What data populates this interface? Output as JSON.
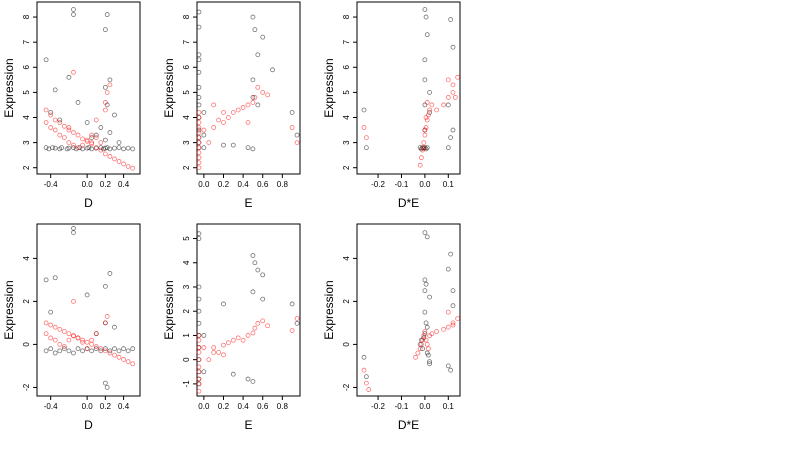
{
  "figure": {
    "axis_color": "#000000",
    "series_colors": {
      "group_1": "#000000",
      "group_2": "#ff0000"
    },
    "point_shape": "open-circle"
  },
  "chart_data": [
    {
      "type": "scatter",
      "row": 1,
      "col": 1,
      "xlabel": "D",
      "ylabel": "Expression",
      "xlim": [
        -0.55,
        0.58
      ],
      "ylim": [
        1.75,
        8.6
      ],
      "xticks": [
        -0.4,
        0.0,
        0.2,
        0.4
      ],
      "xtick_labels": [
        "-0.4",
        "0.0",
        "0.2",
        "0.4"
      ],
      "yticks": [
        2,
        3,
        4,
        5,
        6,
        7,
        8
      ],
      "ytick_labels": [
        "2",
        "3",
        "4",
        "5",
        "6",
        "7",
        "8"
      ],
      "series": [
        {
          "color": "#000000",
          "x": [
            -0.45,
            -0.42,
            -0.38,
            -0.35,
            -0.3,
            -0.28,
            -0.22,
            -0.2,
            -0.15,
            -0.12,
            -0.08,
            -0.05,
            0.0,
            0.02,
            0.05,
            0.1,
            0.15,
            0.18,
            0.2,
            0.22,
            0.25,
            0.3,
            0.35,
            0.4,
            0.45,
            0.5,
            -0.45,
            -0.35,
            -0.2,
            -0.1,
            0.0,
            0.05,
            0.2,
            0.22,
            0.25,
            0.3,
            -0.15,
            -0.15,
            0.2,
            0.22,
            -0.4,
            -0.3,
            0.1,
            0.15,
            0.2,
            0.25,
            0.35
          ],
          "y": [
            2.8,
            2.75,
            2.8,
            2.78,
            2.75,
            2.8,
            2.75,
            2.78,
            2.8,
            2.75,
            2.8,
            2.75,
            2.78,
            2.8,
            2.75,
            2.78,
            2.8,
            2.75,
            2.78,
            2.8,
            2.75,
            2.78,
            2.8,
            2.75,
            2.78,
            2.75,
            6.3,
            5.1,
            5.6,
            4.6,
            3.8,
            3.2,
            7.5,
            8.1,
            5.5,
            4.1,
            8.3,
            8.1,
            5.2,
            4.5,
            4.2,
            3.9,
            3.3,
            3.6,
            3.1,
            3.4,
            3.0
          ]
        },
        {
          "color": "#ff0000",
          "x": [
            -0.45,
            -0.4,
            -0.35,
            -0.3,
            -0.25,
            -0.2,
            -0.15,
            -0.1,
            -0.05,
            0.0,
            0.05,
            0.1,
            0.15,
            0.2,
            0.25,
            0.3,
            0.35,
            0.4,
            0.45,
            0.5,
            -0.45,
            -0.4,
            -0.35,
            -0.3,
            -0.25,
            -0.2,
            -0.15,
            -0.1,
            -0.05,
            0.0,
            0.05,
            0.1,
            0.15,
            0.2,
            0.22,
            0.25,
            0.2,
            -0.15,
            -0.2,
            0.05,
            0.1
          ],
          "y": [
            4.3,
            4.1,
            3.9,
            3.8,
            3.65,
            3.5,
            3.4,
            3.3,
            3.15,
            3.05,
            2.95,
            2.8,
            2.7,
            2.55,
            2.45,
            2.35,
            2.25,
            2.15,
            2.05,
            1.98,
            3.8,
            3.6,
            3.5,
            3.3,
            3.2,
            3.0,
            2.9,
            2.8,
            2.9,
            3.1,
            3.0,
            3.2,
            3.0,
            4.6,
            5.0,
            5.3,
            4.3,
            5.8,
            3.6,
            3.3,
            3.9
          ]
        }
      ]
    },
    {
      "type": "scatter",
      "row": 1,
      "col": 2,
      "xlabel": "E",
      "ylabel": "Expression",
      "xlim": [
        -0.07,
        0.98
      ],
      "ylim": [
        1.75,
        8.6
      ],
      "xticks": [
        0.0,
        0.2,
        0.4,
        0.6,
        0.8
      ],
      "xtick_labels": [
        "0.0",
        "0.2",
        "0.4",
        "0.6",
        "0.8"
      ],
      "yticks": [
        2,
        3,
        4,
        5,
        6,
        7,
        8
      ],
      "ytick_labels": [
        "2",
        "3",
        "4",
        "5",
        "6",
        "7",
        "8"
      ],
      "series": [
        {
          "color": "#000000",
          "x": [
            -0.05,
            -0.05,
            -0.05,
            -0.05,
            -0.05,
            -0.05,
            -0.05,
            -0.05,
            -0.05,
            -0.05,
            -0.05,
            -0.05,
            -0.05,
            0.0,
            0.0,
            0.0,
            0.3,
            0.45,
            0.5,
            0.5,
            0.52,
            0.55,
            0.5,
            0.6,
            0.5,
            0.55,
            0.7,
            0.9,
            0.95,
            0.2
          ],
          "y": [
            2.8,
            3.0,
            3.2,
            3.5,
            4.0,
            4.5,
            4.8,
            5.2,
            5.8,
            6.3,
            6.5,
            8.2,
            7.6,
            2.8,
            3.3,
            4.2,
            2.9,
            2.8,
            2.75,
            8.0,
            7.5,
            6.5,
            5.5,
            7.2,
            4.8,
            4.5,
            5.9,
            4.2,
            3.3,
            2.9
          ]
        },
        {
          "color": "#ff0000",
          "x": [
            -0.05,
            -0.05,
            -0.05,
            -0.05,
            -0.05,
            -0.05,
            -0.05,
            -0.05,
            -0.05,
            -0.05,
            -0.05,
            -0.05,
            0.0,
            0.05,
            0.1,
            0.15,
            0.2,
            0.25,
            0.3,
            0.35,
            0.4,
            0.45,
            0.5,
            0.52,
            0.55,
            0.6,
            0.65,
            0.9,
            0.95,
            0.1,
            0.2,
            0.45
          ],
          "y": [
            2.0,
            2.2,
            2.4,
            2.6,
            2.8,
            3.0,
            3.2,
            3.4,
            3.6,
            3.8,
            4.0,
            4.2,
            3.5,
            3.0,
            3.6,
            3.9,
            3.8,
            4.0,
            4.2,
            4.3,
            4.4,
            4.5,
            4.6,
            4.8,
            5.2,
            5.0,
            4.9,
            3.6,
            3.0,
            4.5,
            4.2,
            3.8
          ]
        }
      ]
    },
    {
      "type": "scatter",
      "row": 1,
      "col": 3,
      "xlabel": "D*E",
      "ylabel": "Expression",
      "xlim": [
        -0.29,
        0.15
      ],
      "ylim": [
        1.75,
        8.6
      ],
      "xticks": [
        -0.2,
        -0.1,
        0.0,
        0.1
      ],
      "xtick_labels": [
        "-0.2",
        "-0.1",
        "0.0",
        "0.1"
      ],
      "yticks": [
        2,
        3,
        4,
        5,
        6,
        7,
        8
      ],
      "ytick_labels": [
        "2",
        "3",
        "4",
        "5",
        "6",
        "7",
        "8"
      ],
      "series": [
        {
          "color": "#000000",
          "x": [
            -0.02,
            -0.015,
            -0.01,
            -0.005,
            0.0,
            0.005,
            0.01,
            0.0,
            0.0,
            0.0,
            0.0,
            0.005,
            0.0,
            0.01,
            0.02,
            0.02,
            0.1,
            0.11,
            0.12,
            0.11,
            0.1,
            0.12,
            -0.26,
            -0.25
          ],
          "y": [
            2.8,
            2.75,
            2.8,
            2.78,
            2.8,
            2.75,
            2.8,
            3.5,
            4.5,
            5.5,
            6.3,
            8.0,
            8.3,
            7.3,
            5.0,
            4.2,
            2.8,
            3.2,
            6.8,
            7.9,
            4.5,
            3.5,
            4.3,
            2.8
          ]
        },
        {
          "color": "#ff0000",
          "x": [
            -0.02,
            -0.015,
            -0.01,
            -0.005,
            0.0,
            0.005,
            0.01,
            0.015,
            0.02,
            -0.005,
            0.0,
            0.005,
            0.01,
            0.03,
            0.05,
            0.08,
            0.1,
            0.12,
            0.14,
            -0.26,
            -0.25,
            0.1,
            0.12,
            0.13
          ],
          "y": [
            2.1,
            2.4,
            2.7,
            3.0,
            3.3,
            3.6,
            3.9,
            4.1,
            4.3,
            2.8,
            3.5,
            4.0,
            4.6,
            4.5,
            4.3,
            4.5,
            4.8,
            5.3,
            5.6,
            3.6,
            3.2,
            5.5,
            5.0,
            4.8
          ]
        }
      ]
    },
    {
      "type": "scatter",
      "row": 2,
      "col": 1,
      "xlabel": "D",
      "ylabel": "Expression",
      "xlim": [
        -0.55,
        0.58
      ],
      "ylim": [
        -2.4,
        5.6
      ],
      "xticks": [
        -0.4,
        0.0,
        0.2,
        0.4
      ],
      "xtick_labels": [
        "-0.4",
        "0.0",
        "0.2",
        "0.4"
      ],
      "yticks": [
        -2,
        0,
        2,
        4
      ],
      "ytick_labels": [
        "-2",
        "0",
        "2",
        "4"
      ],
      "series": [
        {
          "color": "#000000",
          "x": [
            -0.45,
            -0.4,
            -0.35,
            -0.3,
            -0.25,
            -0.2,
            -0.15,
            -0.1,
            -0.05,
            0.0,
            0.05,
            0.1,
            0.15,
            0.2,
            0.25,
            0.3,
            0.35,
            0.4,
            0.45,
            0.5,
            -0.45,
            -0.35,
            -0.15,
            -0.15,
            0.2,
            0.22,
            0.25,
            -0.4,
            0.0,
            0.1,
            0.2,
            0.2,
            0.3
          ],
          "y": [
            -0.3,
            -0.2,
            -0.4,
            -0.3,
            -0.2,
            -0.3,
            -0.4,
            -0.2,
            -0.3,
            -0.2,
            -0.3,
            -0.2,
            -0.3,
            -0.2,
            -0.3,
            -0.2,
            -0.3,
            -0.2,
            -0.3,
            -0.2,
            3.0,
            3.1,
            5.4,
            5.2,
            -1.8,
            -2.0,
            3.3,
            1.5,
            2.3,
            0.5,
            1.0,
            2.7,
            0.8
          ]
        },
        {
          "color": "#ff0000",
          "x": [
            -0.45,
            -0.4,
            -0.35,
            -0.3,
            -0.25,
            -0.2,
            -0.15,
            -0.1,
            -0.05,
            0.0,
            0.05,
            0.1,
            0.15,
            0.2,
            0.25,
            0.3,
            0.35,
            0.4,
            0.45,
            0.5,
            -0.45,
            -0.4,
            -0.35,
            -0.3,
            -0.25,
            -0.2,
            -0.15,
            -0.1,
            -0.05,
            0.0,
            0.05,
            0.1,
            -0.15,
            0.2,
            0.22
          ],
          "y": [
            1.0,
            0.9,
            0.8,
            0.7,
            0.6,
            0.5,
            0.4,
            0.3,
            0.2,
            0.1,
            0.0,
            -0.1,
            -0.2,
            -0.3,
            -0.4,
            -0.5,
            -0.6,
            -0.7,
            -0.8,
            -0.9,
            0.5,
            0.3,
            0.2,
            0.0,
            -0.1,
            0.2,
            0.4,
            0.3,
            0.1,
            -0.2,
            0.2,
            0.5,
            2.0,
            1.0,
            1.3
          ]
        }
      ]
    },
    {
      "type": "scatter",
      "row": 2,
      "col": 2,
      "xlabel": "E",
      "ylabel": "Expression",
      "xlim": [
        -0.07,
        0.98
      ],
      "ylim": [
        -1.5,
        5.6
      ],
      "xticks": [
        0.0,
        0.2,
        0.4,
        0.6,
        0.8
      ],
      "xtick_labels": [
        "0.0",
        "0.2",
        "0.4",
        "0.6",
        "0.8"
      ],
      "yticks": [
        -1,
        0,
        1,
        2,
        3,
        4,
        5
      ],
      "ytick_labels": [
        "-1",
        "0",
        "1",
        "2",
        "3",
        "4",
        "5"
      ],
      "series": [
        {
          "color": "#000000",
          "x": [
            -0.05,
            -0.05,
            -0.05,
            -0.05,
            -0.05,
            -0.05,
            -0.05,
            -0.05,
            -0.05,
            -0.05,
            -0.05,
            -0.05,
            0.0,
            0.0,
            0.3,
            0.45,
            0.5,
            0.5,
            0.52,
            0.55,
            0.5,
            0.6,
            0.6,
            0.9,
            0.95,
            0.2
          ],
          "y": [
            -1.0,
            -0.8,
            -0.5,
            0.0,
            0.5,
            1.0,
            1.5,
            2.0,
            2.5,
            3.0,
            5.0,
            5.2,
            -0.5,
            1.0,
            -0.6,
            -0.8,
            -0.9,
            4.3,
            4.0,
            3.7,
            2.8,
            3.5,
            2.5,
            2.3,
            1.5,
            2.3
          ]
        },
        {
          "color": "#ff0000",
          "x": [
            -0.05,
            -0.05,
            -0.05,
            -0.05,
            -0.05,
            -0.05,
            -0.05,
            -0.05,
            -0.05,
            -0.05,
            0.0,
            0.05,
            0.1,
            0.15,
            0.2,
            0.25,
            0.3,
            0.35,
            0.4,
            0.45,
            0.5,
            0.52,
            0.55,
            0.6,
            0.65,
            0.9,
            0.95,
            0.1,
            0.2
          ],
          "y": [
            -1.3,
            -1.0,
            -0.8,
            -0.5,
            -0.3,
            0.0,
            0.3,
            0.5,
            0.8,
            1.0,
            0.5,
            0.0,
            0.5,
            0.3,
            0.6,
            0.7,
            0.8,
            0.9,
            0.8,
            1.0,
            1.1,
            1.3,
            1.5,
            1.6,
            1.4,
            1.2,
            1.7,
            0.3,
            0.2
          ]
        }
      ]
    },
    {
      "type": "scatter",
      "row": 2,
      "col": 3,
      "xlabel": "D*E",
      "ylabel": "Expression",
      "xlim": [
        -0.29,
        0.15
      ],
      "ylim": [
        -2.4,
        5.6
      ],
      "xticks": [
        -0.2,
        -0.1,
        0.0,
        0.1
      ],
      "xtick_labels": [
        "-0.2",
        "-0.1",
        "0.0",
        "0.1"
      ],
      "yticks": [
        -2,
        0,
        2,
        4
      ],
      "ytick_labels": [
        "-2",
        "0",
        "2",
        "4"
      ],
      "series": [
        {
          "color": "#000000",
          "x": [
            -0.02,
            -0.015,
            -0.01,
            -0.005,
            0.0,
            0.005,
            0.01,
            0.015,
            0.02,
            0.0,
            0.0,
            0.0,
            0.005,
            0.0,
            0.01,
            0.02,
            0.1,
            0.11,
            0.12,
            0.11,
            0.1,
            0.12,
            -0.26,
            -0.25,
            0.01,
            0.02
          ],
          "y": [
            0.0,
            0.2,
            -0.2,
            0.3,
            0.5,
            1.0,
            0.8,
            -0.5,
            -0.8,
            1.5,
            2.5,
            3.0,
            2.8,
            5.2,
            5.0,
            2.2,
            -1.0,
            -1.2,
            2.5,
            4.2,
            3.5,
            1.8,
            -0.6,
            -1.5,
            -0.4,
            -0.9
          ]
        },
        {
          "color": "#ff0000",
          "x": [
            -0.04,
            -0.03,
            -0.02,
            -0.015,
            -0.01,
            -0.005,
            0.0,
            0.005,
            0.01,
            0.015,
            0.02,
            0.03,
            0.05,
            0.08,
            0.1,
            0.12,
            0.14,
            -0.26,
            -0.25,
            -0.24,
            0.1,
            0.12
          ],
          "y": [
            -0.6,
            -0.4,
            -0.2,
            0.0,
            0.2,
            0.4,
            0.6,
            0.2,
            0.0,
            -0.2,
            0.4,
            0.5,
            0.6,
            0.7,
            0.8,
            1.0,
            1.2,
            -1.2,
            -1.8,
            -2.1,
            1.5,
            0.9
          ]
        }
      ]
    }
  ]
}
